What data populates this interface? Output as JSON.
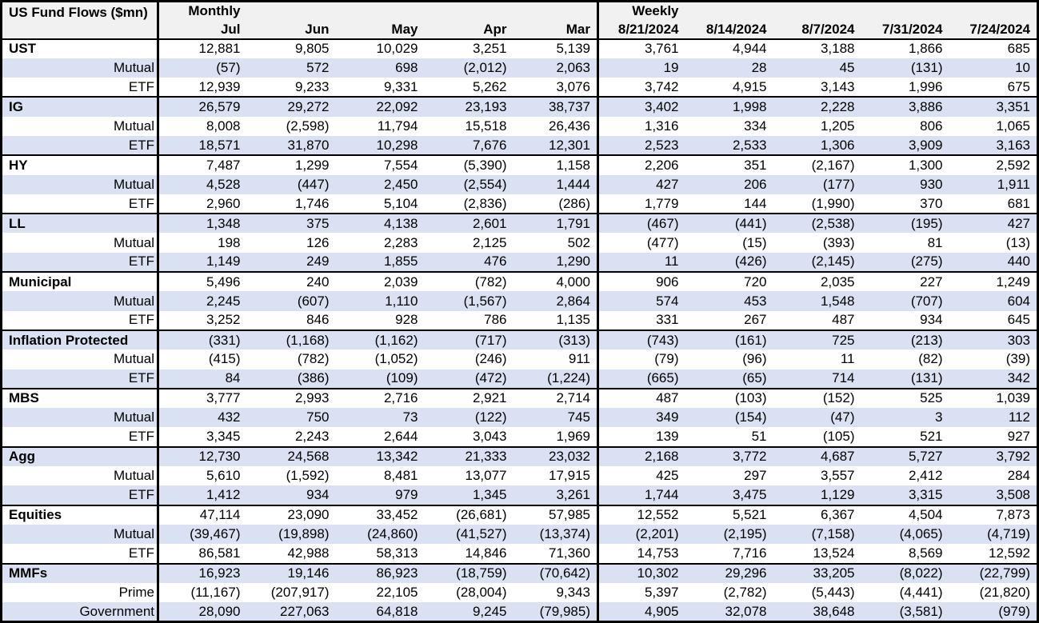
{
  "title": "US Fund Flows ($mn)",
  "colors": {
    "stripe_row": "#D9E1F2",
    "header_bg": "#F1F1F1",
    "border": "#000000",
    "text": "#000000",
    "row_bg": "#FFFFFF"
  },
  "chart_data": {
    "type": "table",
    "title": "US Fund Flows ($mn)",
    "monthly_label": "Monthly",
    "weekly_label": "Weekly",
    "monthly_columns": [
      "Jul",
      "Jun",
      "May",
      "Apr",
      "Mar"
    ],
    "weekly_columns": [
      "8/21/2024",
      "8/14/2024",
      "8/7/2024",
      "7/31/2024",
      "7/24/2024"
    ],
    "groups": [
      {
        "name": "UST",
        "total": {
          "monthly": [
            "12,881",
            "9,805",
            "10,029",
            "3,251",
            "5,139"
          ],
          "weekly": [
            "3,761",
            "4,944",
            "3,188",
            "1,866",
            "685"
          ]
        },
        "rows": [
          {
            "label": "Mutual",
            "monthly": [
              "(57)",
              "572",
              "698",
              "(2,012)",
              "2,063"
            ],
            "weekly": [
              "19",
              "28",
              "45",
              "(131)",
              "10"
            ]
          },
          {
            "label": "ETF",
            "monthly": [
              "12,939",
              "9,233",
              "9,331",
              "5,262",
              "3,076"
            ],
            "weekly": [
              "3,742",
              "4,915",
              "3,143",
              "1,996",
              "675"
            ]
          }
        ]
      },
      {
        "name": "IG",
        "total": {
          "monthly": [
            "26,579",
            "29,272",
            "22,092",
            "23,193",
            "38,737"
          ],
          "weekly": [
            "3,402",
            "1,998",
            "2,228",
            "3,886",
            "3,351"
          ]
        },
        "rows": [
          {
            "label": "Mutual",
            "monthly": [
              "8,008",
              "(2,598)",
              "11,794",
              "15,518",
              "26,436"
            ],
            "weekly": [
              "1,316",
              "334",
              "1,205",
              "806",
              "1,065"
            ]
          },
          {
            "label": "ETF",
            "monthly": [
              "18,571",
              "31,870",
              "10,298",
              "7,676",
              "12,301"
            ],
            "weekly": [
              "2,523",
              "2,533",
              "1,306",
              "3,909",
              "3,163"
            ]
          }
        ]
      },
      {
        "name": "HY",
        "total": {
          "monthly": [
            "7,487",
            "1,299",
            "7,554",
            "(5,390)",
            "1,158"
          ],
          "weekly": [
            "2,206",
            "351",
            "(2,167)",
            "1,300",
            "2,592"
          ]
        },
        "rows": [
          {
            "label": "Mutual",
            "monthly": [
              "4,528",
              "(447)",
              "2,450",
              "(2,554)",
              "1,444"
            ],
            "weekly": [
              "427",
              "206",
              "(177)",
              "930",
              "1,911"
            ]
          },
          {
            "label": "ETF",
            "monthly": [
              "2,960",
              "1,746",
              "5,104",
              "(2,836)",
              "(286)"
            ],
            "weekly": [
              "1,779",
              "144",
              "(1,990)",
              "370",
              "681"
            ]
          }
        ]
      },
      {
        "name": "LL",
        "total": {
          "monthly": [
            "1,348",
            "375",
            "4,138",
            "2,601",
            "1,791"
          ],
          "weekly": [
            "(467)",
            "(441)",
            "(2,538)",
            "(195)",
            "427"
          ]
        },
        "rows": [
          {
            "label": "Mutual",
            "monthly": [
              "198",
              "126",
              "2,283",
              "2,125",
              "502"
            ],
            "weekly": [
              "(477)",
              "(15)",
              "(393)",
              "81",
              "(13)"
            ]
          },
          {
            "label": "ETF",
            "monthly": [
              "1,149",
              "249",
              "1,855",
              "476",
              "1,290"
            ],
            "weekly": [
              "11",
              "(426)",
              "(2,145)",
              "(275)",
              "440"
            ]
          }
        ]
      },
      {
        "name": "Municipal",
        "total": {
          "monthly": [
            "5,496",
            "240",
            "2,039",
            "(782)",
            "4,000"
          ],
          "weekly": [
            "906",
            "720",
            "2,035",
            "227",
            "1,249"
          ]
        },
        "rows": [
          {
            "label": "Mutual",
            "monthly": [
              "2,245",
              "(607)",
              "1,110",
              "(1,567)",
              "2,864"
            ],
            "weekly": [
              "574",
              "453",
              "1,548",
              "(707)",
              "604"
            ]
          },
          {
            "label": "ETF",
            "monthly": [
              "3,252",
              "846",
              "928",
              "786",
              "1,135"
            ],
            "weekly": [
              "331",
              "267",
              "487",
              "934",
              "645"
            ]
          }
        ]
      },
      {
        "name": "Inflation Protected",
        "total": {
          "monthly": [
            "(331)",
            "(1,168)",
            "(1,162)",
            "(717)",
            "(313)"
          ],
          "weekly": [
            "(743)",
            "(161)",
            "725",
            "(213)",
            "303"
          ]
        },
        "rows": [
          {
            "label": "Mutual",
            "monthly": [
              "(415)",
              "(782)",
              "(1,052)",
              "(246)",
              "911"
            ],
            "weekly": [
              "(79)",
              "(96)",
              "11",
              "(82)",
              "(39)"
            ]
          },
          {
            "label": "ETF",
            "monthly": [
              "84",
              "(386)",
              "(109)",
              "(472)",
              "(1,224)"
            ],
            "weekly": [
              "(665)",
              "(65)",
              "714",
              "(131)",
              "342"
            ]
          }
        ]
      },
      {
        "name": "MBS",
        "total": {
          "monthly": [
            "3,777",
            "2,993",
            "2,716",
            "2,921",
            "2,714"
          ],
          "weekly": [
            "487",
            "(103)",
            "(152)",
            "525",
            "1,039"
          ]
        },
        "rows": [
          {
            "label": "Mutual",
            "monthly": [
              "432",
              "750",
              "73",
              "(122)",
              "745"
            ],
            "weekly": [
              "349",
              "(154)",
              "(47)",
              "3",
              "112"
            ]
          },
          {
            "label": "ETF",
            "monthly": [
              "3,345",
              "2,243",
              "2,644",
              "3,043",
              "1,969"
            ],
            "weekly": [
              "139",
              "51",
              "(105)",
              "521",
              "927"
            ]
          }
        ]
      },
      {
        "name": "Agg",
        "total": {
          "monthly": [
            "12,730",
            "24,568",
            "13,342",
            "21,333",
            "23,032"
          ],
          "weekly": [
            "2,168",
            "3,772",
            "4,687",
            "5,727",
            "3,792"
          ]
        },
        "rows": [
          {
            "label": "Mutual",
            "monthly": [
              "5,610",
              "(1,592)",
              "8,481",
              "13,077",
              "17,915"
            ],
            "weekly": [
              "425",
              "297",
              "3,557",
              "2,412",
              "284"
            ]
          },
          {
            "label": "ETF",
            "monthly": [
              "1,412",
              "934",
              "979",
              "1,345",
              "3,261"
            ],
            "weekly": [
              "1,744",
              "3,475",
              "1,129",
              "3,315",
              "3,508"
            ]
          }
        ]
      },
      {
        "name": "Equities",
        "total": {
          "monthly": [
            "47,114",
            "23,090",
            "33,452",
            "(26,681)",
            "57,985"
          ],
          "weekly": [
            "12,552",
            "5,521",
            "6,367",
            "4,504",
            "7,873"
          ]
        },
        "rows": [
          {
            "label": "Mutual",
            "monthly": [
              "(39,467)",
              "(19,898)",
              "(24,860)",
              "(41,527)",
              "(13,374)"
            ],
            "weekly": [
              "(2,201)",
              "(2,195)",
              "(7,158)",
              "(4,065)",
              "(4,719)"
            ]
          },
          {
            "label": "ETF",
            "monthly": [
              "86,581",
              "42,988",
              "58,313",
              "14,846",
              "71,360"
            ],
            "weekly": [
              "14,753",
              "7,716",
              "13,524",
              "8,569",
              "12,592"
            ]
          }
        ]
      },
      {
        "name": "MMFs",
        "total": {
          "monthly": [
            "16,923",
            "19,146",
            "86,923",
            "(18,759)",
            "(70,642)"
          ],
          "weekly": [
            "10,302",
            "29,296",
            "33,205",
            "(8,022)",
            "(22,799)"
          ]
        },
        "rows": [
          {
            "label": "Prime",
            "monthly": [
              "(11,167)",
              "(207,917)",
              "22,105",
              "(28,004)",
              "9,343"
            ],
            "weekly": [
              "5,397",
              "(2,782)",
              "(5,443)",
              "(4,441)",
              "(21,820)"
            ]
          },
          {
            "label": "Government",
            "monthly": [
              "28,090",
              "227,063",
              "64,818",
              "9,245",
              "(79,985)"
            ],
            "weekly": [
              "4,905",
              "32,078",
              "38,648",
              "(3,581)",
              "(979)"
            ]
          }
        ]
      }
    ]
  }
}
